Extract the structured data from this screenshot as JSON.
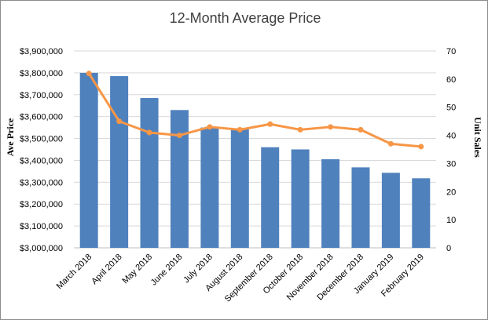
{
  "chart_data": {
    "type": "bar+line",
    "title": "12-Month Average Price",
    "categories": [
      "March 2018",
      "April 2018",
      "May 2018",
      "June 2018",
      "July 2018",
      "August 2018",
      "September 2018",
      "October 2018",
      "November 2018",
      "December 2018",
      "January 2019",
      "February 2019"
    ],
    "series": [
      {
        "name": "",
        "type": "bar",
        "axis": "left",
        "color": "#4f81bd",
        "values": [
          3800000,
          3785000,
          3685000,
          3630000,
          3550000,
          3545000,
          3460000,
          3450000,
          3405000,
          3368000,
          3343000,
          3318000
        ]
      },
      {
        "name": "",
        "type": "line",
        "axis": "right",
        "color": "#f79646",
        "values": [
          62,
          45,
          41,
          40,
          43,
          42,
          44,
          42,
          43,
          42,
          37,
          36
        ]
      }
    ],
    "ylabel_left": "Ave Price",
    "ylabel_right": "Unit Sales",
    "ylim_left": [
      3000000,
      3900000
    ],
    "ylim_right": [
      0,
      70
    ],
    "yticks_left": [
      "$3,000,000",
      "$3,100,000",
      "$3,200,000",
      "$3,300,000",
      "$3,400,000",
      "$3,500,000",
      "$3,600,000",
      "$3,700,000",
      "$3,800,000",
      "$3,900,000"
    ],
    "yticks_right": [
      "0",
      "10",
      "20",
      "30",
      "40",
      "50",
      "60",
      "70"
    ],
    "grid": true,
    "legend": "none"
  }
}
